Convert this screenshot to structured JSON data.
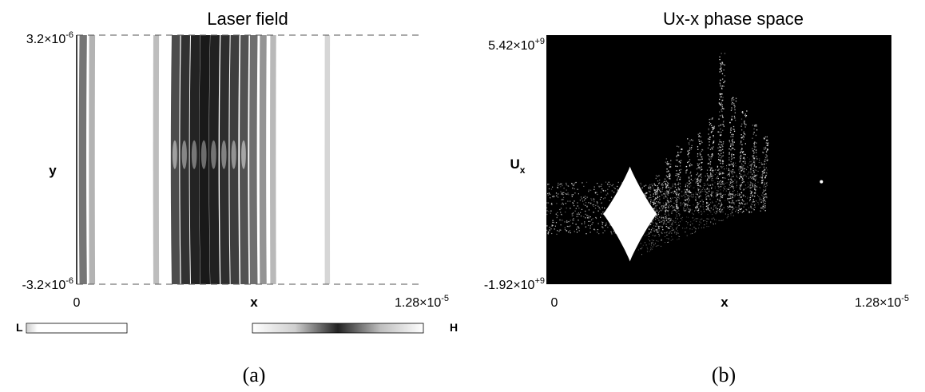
{
  "chart_data": [
    {
      "panel": "(a)",
      "type": "heatmap",
      "title": "Laser field",
      "xlabel": "x",
      "ylabel": "y",
      "xlim": [
        0,
        1.28e-05
      ],
      "ylim": [
        -3.2e-06,
        3.2e-06
      ],
      "x_tick_labels": {
        "min": "0",
        "max_base": "1.28×10",
        "max_exp": "-5"
      },
      "y_tick_labels": {
        "max_base": "3.2×10",
        "max_exp": "-6",
        "min_base": "-3.2×10",
        "min_exp": "-6"
      },
      "colorbar": {
        "low_label": "L",
        "high_label": "H"
      },
      "fringes": [
        {
          "x": 2.43e-07,
          "intensity": 0.55
        },
        {
          "x": 5.73e-07,
          "intensity": 0.25
        },
        {
          "x": 2.95e-06,
          "intensity": 0.2
        },
        {
          "x": 3.68e-06,
          "intensity": 0.75
        },
        {
          "x": 4.04e-06,
          "intensity": 0.88
        },
        {
          "x": 4.41e-06,
          "intensity": 0.95
        },
        {
          "x": 4.77e-06,
          "intensity": 1.0
        },
        {
          "x": 5.13e-06,
          "intensity": 0.96
        },
        {
          "x": 5.51e-06,
          "intensity": 0.9
        },
        {
          "x": 5.87e-06,
          "intensity": 0.82
        },
        {
          "x": 6.23e-06,
          "intensity": 0.72
        },
        {
          "x": 6.57e-06,
          "intensity": 0.58
        },
        {
          "x": 6.92e-06,
          "intensity": 0.4
        },
        {
          "x": 7.29e-06,
          "intensity": 0.22
        },
        {
          "x": 9.3e-06,
          "intensity": 0.08
        }
      ],
      "caption": "(a)"
    },
    {
      "panel": "(b)",
      "type": "scatter",
      "title": "Ux-x phase space",
      "xlabel": "x",
      "ylabel": "U",
      "ylabel_sub": "x",
      "xlim": [
        0,
        1.28e-05
      ],
      "ylim": [
        -1920000000.0,
        5420000000.0
      ],
      "x_tick_labels": {
        "min": "0",
        "max_base": "1.28×10",
        "max_exp": "-5"
      },
      "y_tick_labels": {
        "max_base": "5.42×10",
        "max_exp": "+9",
        "min_base": "-1.92×10",
        "min_exp": "+9"
      },
      "background_color": "#000000",
      "particle_color": "#ffffff",
      "blob": {
        "x_center": 3.1e-06,
        "y_center": 150000000.0,
        "half_width_x": 1e-06,
        "half_height_y": 1400000000.0
      },
      "spikes": [
        {
          "x": 3.6e-06,
          "y_max": 800000000.0
        },
        {
          "x": 4e-06,
          "y_max": 1300000000.0
        },
        {
          "x": 4.4e-06,
          "y_max": 1800000000.0
        },
        {
          "x": 4.8e-06,
          "y_max": 2200000000.0
        },
        {
          "x": 5.2e-06,
          "y_max": 2400000000.0
        },
        {
          "x": 5.6e-06,
          "y_max": 2600000000.0
        },
        {
          "x": 6e-06,
          "y_max": 3000000000.0
        },
        {
          "x": 6.4e-06,
          "y_max": 4900000000.0
        },
        {
          "x": 6.8e-06,
          "y_max": 3600000000.0
        },
        {
          "x": 7.2e-06,
          "y_max": 3200000000.0
        },
        {
          "x": 7.6e-06,
          "y_max": 2800000000.0
        },
        {
          "x": 8e-06,
          "y_max": 2500000000.0
        }
      ],
      "isolated_points": [
        {
          "x": 1.02e-05,
          "y": 1100000000.0
        }
      ],
      "caption": "(b)"
    }
  ]
}
